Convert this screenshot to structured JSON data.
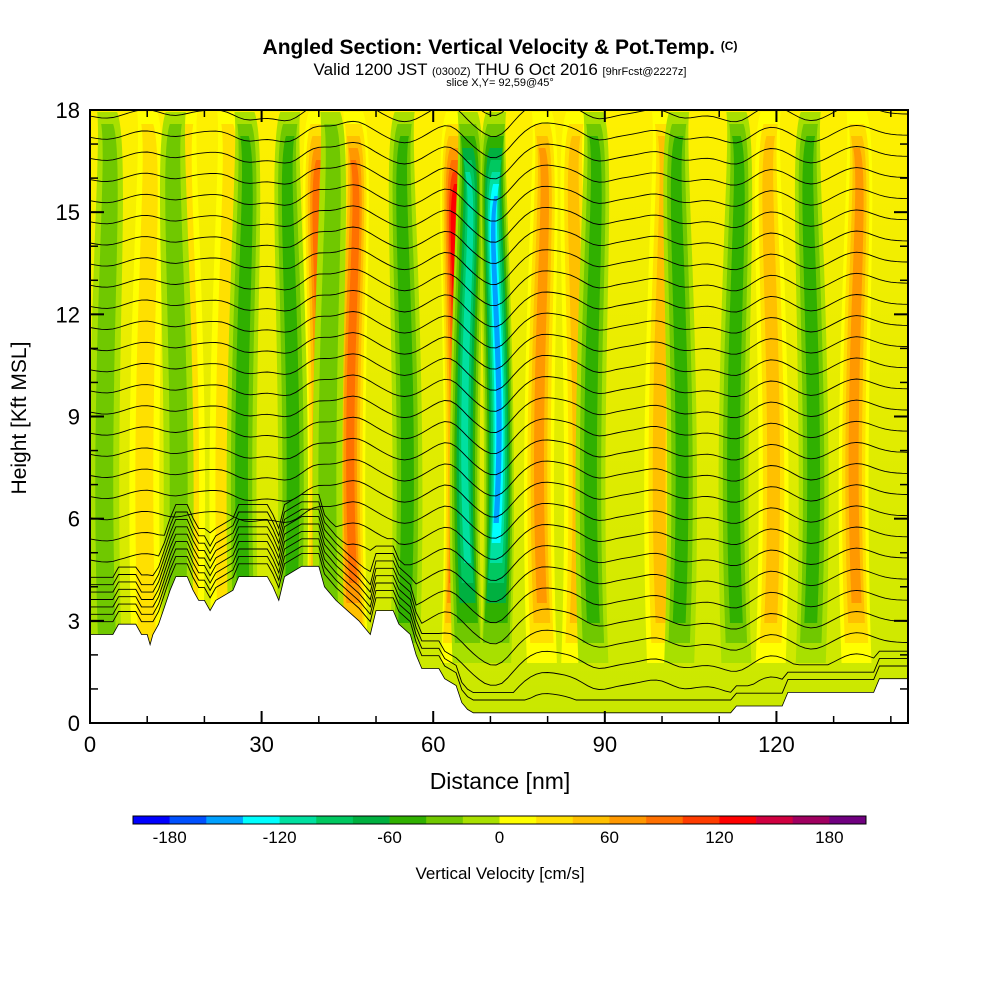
{
  "header": {
    "title_main": "Angled Section: Vertical Velocity & Pot.Temp.",
    "title_unit": "(C)",
    "valid_prefix": "Valid 1200 JST",
    "valid_z": "(0300Z)",
    "valid_date": "THU 6 Oct 2016",
    "valid_fcst": "[9hrFcst@2227z]",
    "slice": "slice X,Y= 92,59@45°"
  },
  "chart_data": {
    "type": "heatmap",
    "xlabel": "Distance [nm]",
    "ylabel": "Height [Kft MSL]",
    "xlim": [
      0,
      143
    ],
    "ylim": [
      0,
      18
    ],
    "xticks": [
      "0",
      "30",
      "60",
      "90",
      "120"
    ],
    "xtick_values": [
      0,
      30,
      60,
      90,
      120
    ],
    "yticks": [
      "0",
      "3",
      "6",
      "9",
      "12",
      "15",
      "18"
    ],
    "ytick_values": [
      0,
      3,
      6,
      9,
      12,
      15,
      18
    ],
    "colorbar": {
      "title": "Vertical Velocity [cm/s]",
      "tick_labels": [
        "-180",
        "-120",
        "-60",
        "0",
        "60",
        "120",
        "180"
      ],
      "tick_values": [
        -180,
        -120,
        -60,
        0,
        60,
        120,
        180
      ],
      "colors": [
        "#0000ff",
        "#0050ff",
        "#00a0ff",
        "#00ffff",
        "#00e0a0",
        "#00c860",
        "#00b040",
        "#30b000",
        "#70c800",
        "#a8e000",
        "#ffff00",
        "#ffe000",
        "#ffc000",
        "#ff9800",
        "#ff7000",
        "#ff3c00",
        "#ff0000",
        "#d00040",
        "#a00060",
        "#700080"
      ]
    },
    "updrafts": [
      {
        "x": 10,
        "value": 35
      },
      {
        "x": 17,
        "value": 30
      },
      {
        "x": 24,
        "value": 40
      },
      {
        "x": 40,
        "value": 90
      },
      {
        "x": 46,
        "value": 100
      },
      {
        "x": 64,
        "value": 130
      },
      {
        "x": 79,
        "value": 80
      },
      {
        "x": 85,
        "value": 60
      },
      {
        "x": 100,
        "value": 50
      },
      {
        "x": 119,
        "value": 60
      },
      {
        "x": 134,
        "value": 70
      }
    ],
    "downdrafts": [
      {
        "x": 3,
        "value": -30
      },
      {
        "x": 15,
        "value": -40
      },
      {
        "x": 27,
        "value": -60
      },
      {
        "x": 35,
        "value": -60
      },
      {
        "x": 42,
        "value": -40
      },
      {
        "x": 55,
        "value": -55
      },
      {
        "x": 66,
        "value": -120
      },
      {
        "x": 71,
        "value": -150
      },
      {
        "x": 88,
        "value": -60
      },
      {
        "x": 103,
        "value": -50
      },
      {
        "x": 113,
        "value": -60
      },
      {
        "x": 126,
        "value": -50
      }
    ],
    "terrain_kft": [
      [
        0,
        2.6
      ],
      [
        4,
        2.6
      ],
      [
        5,
        2.9
      ],
      [
        8,
        2.9
      ],
      [
        9,
        2.6
      ],
      [
        10,
        2.6
      ],
      [
        10.5,
        2.3
      ],
      [
        11,
        2.6
      ],
      [
        12,
        2.9
      ],
      [
        13,
        3.4
      ],
      [
        14,
        3.9
      ],
      [
        15,
        4.3
      ],
      [
        17,
        4.3
      ],
      [
        18,
        3.9
      ],
      [
        19,
        3.6
      ],
      [
        20,
        3.6
      ],
      [
        21,
        3.3
      ],
      [
        22,
        3.6
      ],
      [
        25,
        3.9
      ],
      [
        26,
        4.3
      ],
      [
        31,
        4.3
      ],
      [
        32,
        4.0
      ],
      [
        33,
        3.6
      ],
      [
        34,
        4.3
      ],
      [
        37,
        4.6
      ],
      [
        40,
        4.6
      ],
      [
        41,
        4.0
      ],
      [
        43,
        3.6
      ],
      [
        45,
        3.3
      ],
      [
        47,
        3.0
      ],
      [
        49,
        2.6
      ],
      [
        50,
        3.3
      ],
      [
        53,
        3.3
      ],
      [
        54,
        2.9
      ],
      [
        56,
        2.6
      ],
      [
        57,
        2.0
      ],
      [
        58,
        1.6
      ],
      [
        61,
        1.6
      ],
      [
        62,
        1.3
      ],
      [
        64,
        1.1
      ],
      [
        65,
        0.6
      ],
      [
        66,
        0.4
      ],
      [
        67,
        0.3
      ],
      [
        112,
        0.3
      ],
      [
        113,
        0.5
      ],
      [
        121,
        0.5
      ],
      [
        122,
        0.9
      ],
      [
        137,
        0.9
      ],
      [
        138,
        1.3
      ],
      [
        143,
        1.3
      ]
    ],
    "theta_contours": {
      "count": 30,
      "interval_c": 1,
      "min_height_kft": 0.5,
      "max_height_kft": 18.5
    }
  }
}
